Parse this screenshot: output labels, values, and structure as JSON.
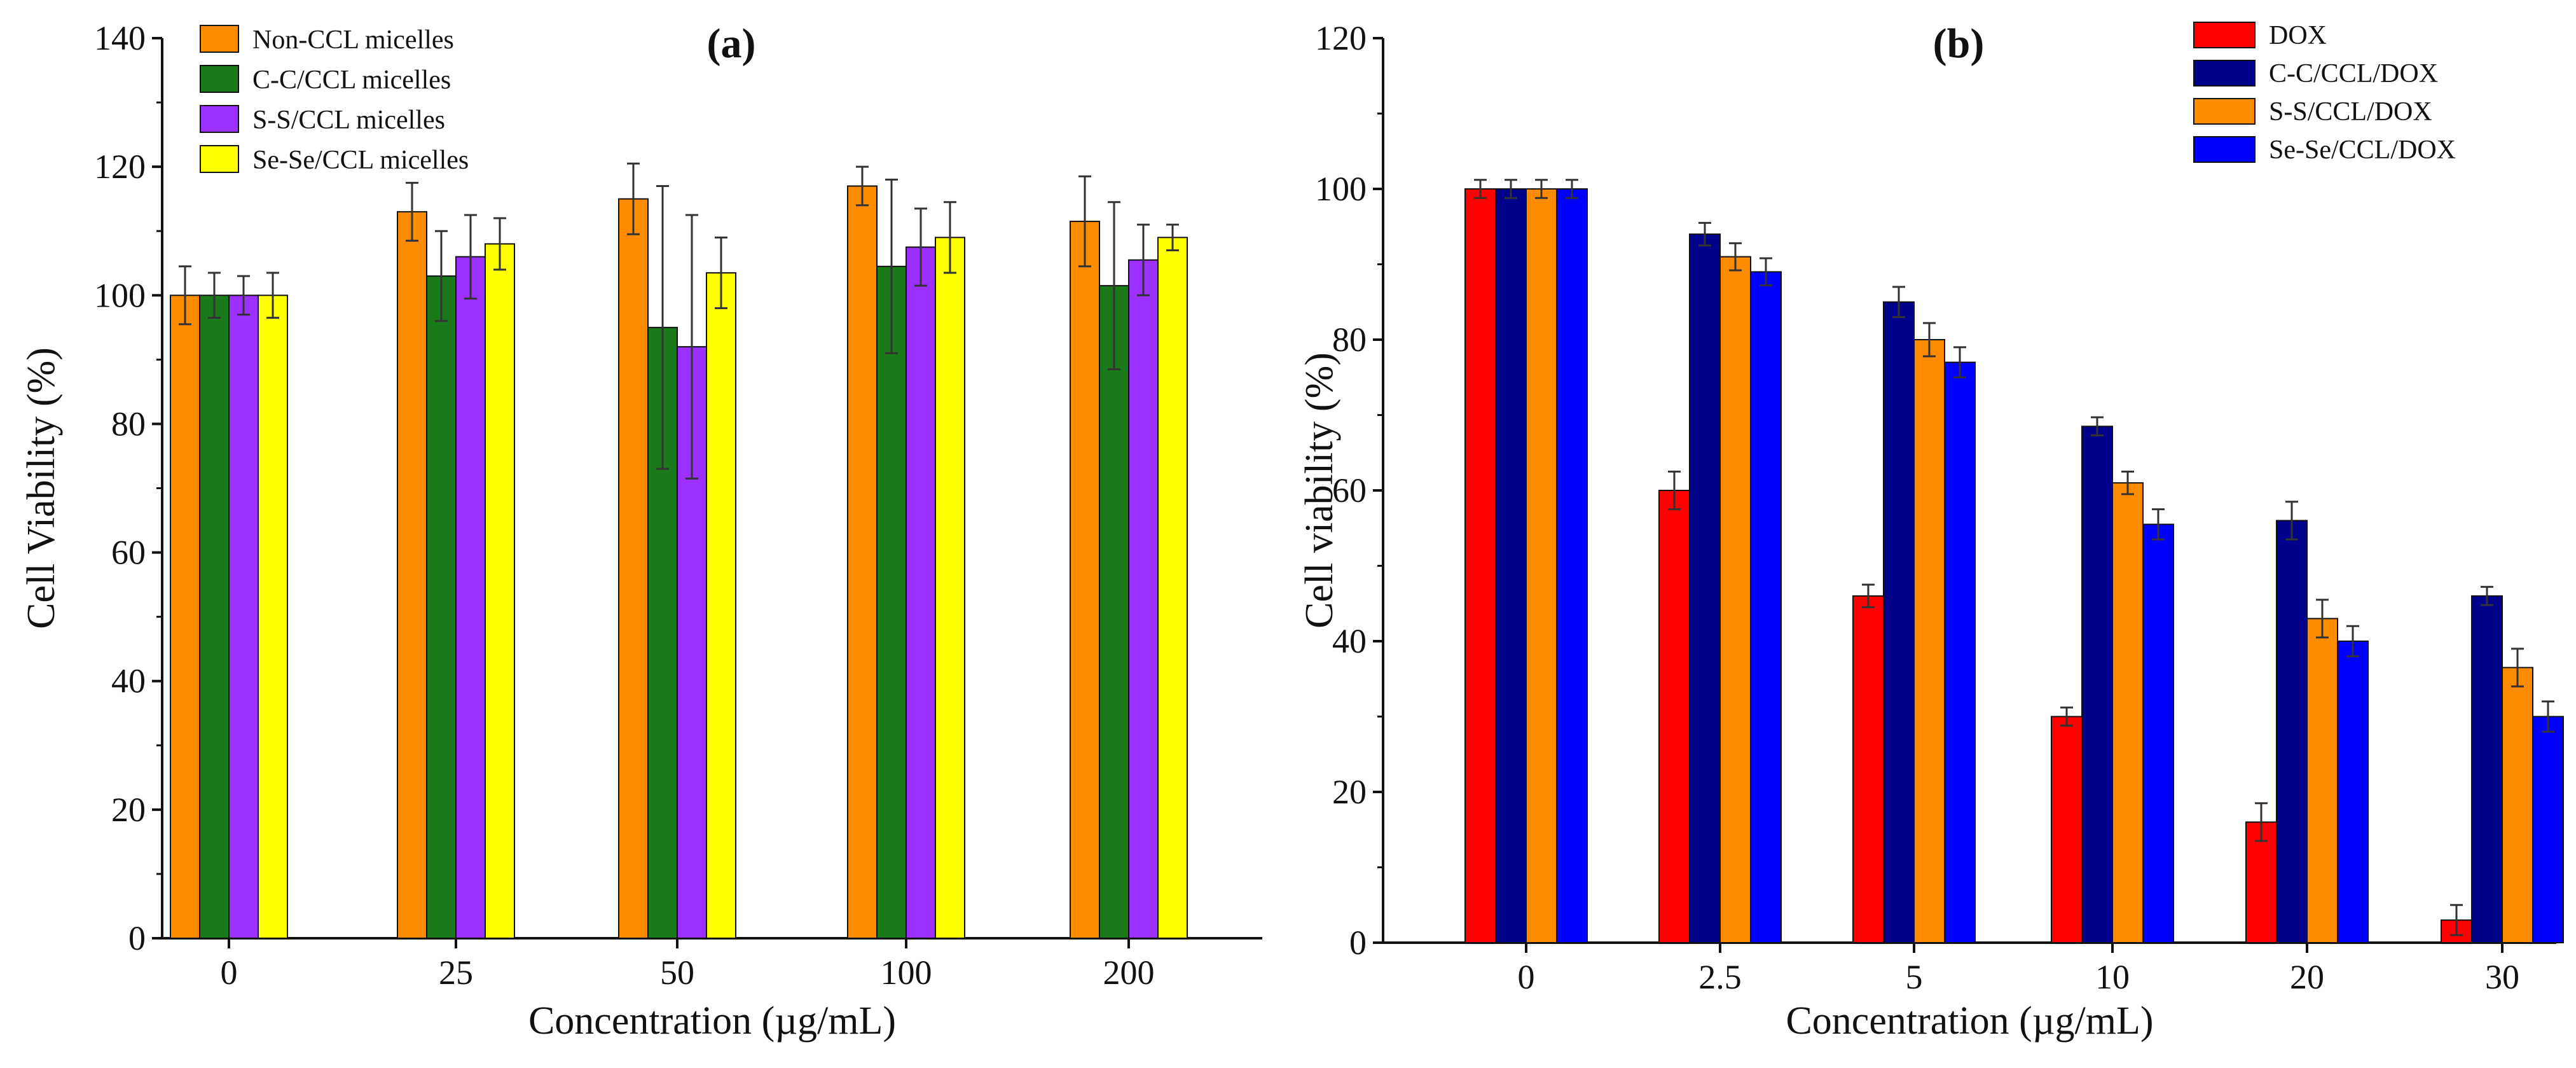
{
  "chart_data": [
    {
      "type": "bar",
      "panel_label": "(a)",
      "xlabel": "Concentration (µg/mL)",
      "ylabel": "Cell Viability (%)",
      "ylim": [
        0,
        140
      ],
      "yticks": [
        0,
        20,
        40,
        60,
        80,
        100,
        120,
        140
      ],
      "categories": [
        "0",
        "25",
        "50",
        "100",
        "200"
      ],
      "legend_position": "top-left",
      "grid": false,
      "series": [
        {
          "name": "Non-CCL micelles",
          "color": "#ff8c00",
          "values": [
            100,
            113,
            115,
            117,
            111.5
          ],
          "errors": [
            4.5,
            4.5,
            5.5,
            3,
            7
          ]
        },
        {
          "name": "C-C/CCL micelles",
          "color": "#1a7a1a",
          "values": [
            100,
            103,
            95,
            104.5,
            101.5
          ],
          "errors": [
            3.5,
            7,
            22,
            13.5,
            13
          ]
        },
        {
          "name": "S-S/CCL micelles",
          "color": "#9b30ff",
          "values": [
            100,
            106,
            92,
            107.5,
            105.5
          ],
          "errors": [
            3,
            6.5,
            20.5,
            6,
            5.5
          ]
        },
        {
          "name": "Se-Se/CCL micelles",
          "color": "#ffff00",
          "values": [
            100,
            108,
            103.5,
            109,
            109
          ],
          "errors": [
            3.5,
            4,
            5.5,
            5.5,
            2
          ]
        }
      ]
    },
    {
      "type": "bar",
      "panel_label": "(b)",
      "xlabel": "Concentration (µg/mL)",
      "ylabel": "Cell viability (%)",
      "ylim": [
        0,
        120
      ],
      "yticks": [
        0,
        20,
        40,
        60,
        80,
        100,
        120
      ],
      "categories": [
        "0",
        "2.5",
        "5",
        "10",
        "20",
        "30"
      ],
      "legend_position": "top-right",
      "grid": false,
      "series": [
        {
          "name": "DOX",
          "color": "#ff0000",
          "values": [
            100,
            60,
            46,
            30,
            16,
            3
          ],
          "errors": [
            1.2,
            2.5,
            1.5,
            1.2,
            2.5,
            2
          ]
        },
        {
          "name": "C-C/CCL/DOX",
          "color": "#00008b",
          "values": [
            100,
            94,
            85,
            68.5,
            56,
            46
          ],
          "errors": [
            1.2,
            1.5,
            2,
            1.2,
            2.5,
            1.2
          ]
        },
        {
          "name": "S-S/CCL/DOX",
          "color": "#ff8c00",
          "values": [
            100,
            91,
            80,
            61,
            43,
            36.5
          ],
          "errors": [
            1.2,
            1.8,
            2.2,
            1.5,
            2.5,
            2.5
          ]
        },
        {
          "name": "Se-Se/CCL/DOX",
          "color": "#0000ff",
          "values": [
            100,
            89,
            77,
            55.5,
            40,
            30
          ],
          "errors": [
            1.2,
            1.8,
            2,
            2,
            2,
            2
          ]
        }
      ]
    }
  ]
}
